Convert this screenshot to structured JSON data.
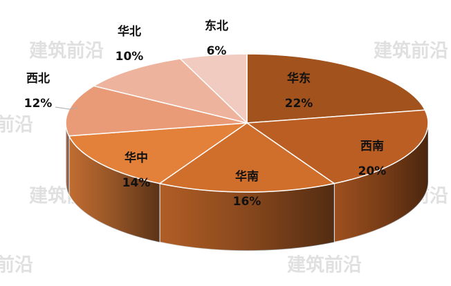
{
  "chart_data": {
    "type": "pie3d",
    "watermark": "建筑前沿",
    "categories": [
      "华东",
      "西南",
      "华南",
      "华中",
      "西北",
      "华北",
      "东北"
    ],
    "values": [
      22,
      20,
      16,
      14,
      12,
      10,
      6
    ],
    "value_labels": [
      "22%",
      "20%",
      "16%",
      "14%",
      "12%",
      "10%",
      "6%"
    ],
    "colors": [
      "#a1521d",
      "#ba5e23",
      "#d06e2c",
      "#e3803a",
      "#e99b77",
      "#eeb39c",
      "#f1cbc0"
    ]
  }
}
